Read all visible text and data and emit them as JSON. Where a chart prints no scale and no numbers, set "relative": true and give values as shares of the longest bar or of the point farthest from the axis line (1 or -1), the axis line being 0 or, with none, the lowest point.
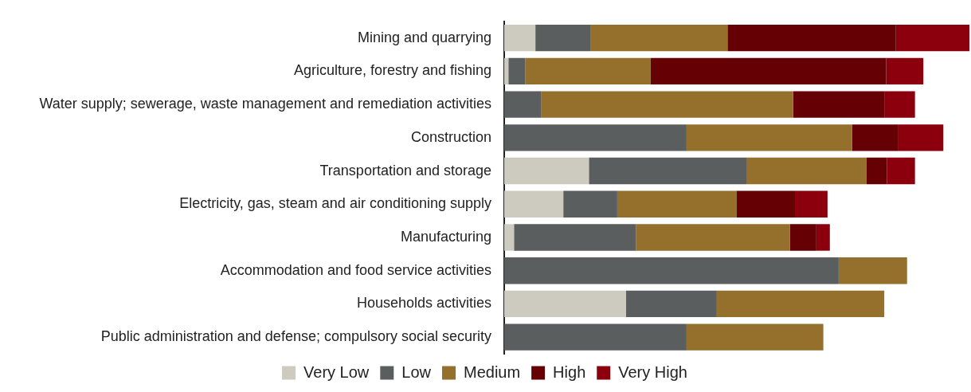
{
  "chart_data": {
    "type": "bar",
    "orientation": "horizontal",
    "stacked": true,
    "relative": true,
    "legend": "bottom",
    "grid": false,
    "categories": [
      "Mining and quarrying",
      "Agriculture, forestry and fishing",
      "Water supply; sewerage, waste management and remediation activities",
      "Construction",
      "Transportation and storage",
      "Electricity, gas, steam and air conditioning supply",
      "Manufacturing",
      "Accommodation and food service activities",
      "Households activities",
      "Public administration and defense; compulsory social security"
    ],
    "series": [
      {
        "name": "Very Low",
        "color": "#cdcbbf",
        "values": [
          0.067,
          0.009,
          0,
          0,
          0.182,
          0.127,
          0.021,
          0,
          0.262,
          0
        ]
      },
      {
        "name": "Low",
        "color": "#5b5e5e",
        "values": [
          0.118,
          0.036,
          0.08,
          0.392,
          0.34,
          0.116,
          0.262,
          0.719,
          0.195,
          0.392
        ]
      },
      {
        "name": "Medium",
        "color": "#94702c",
        "values": [
          0.295,
          0.27,
          0.541,
          0.356,
          0.257,
          0.257,
          0.331,
          0.147,
          0.36,
          0.294
        ]
      },
      {
        "name": "High",
        "color": "#650005",
        "values": [
          0.362,
          0.506,
          0.196,
          0.098,
          0.044,
          0.125,
          0.057,
          0,
          0,
          0
        ]
      },
      {
        "name": "Very High",
        "color": "#8c000e",
        "values": [
          0.158,
          0.08,
          0.066,
          0.098,
          0.06,
          0.07,
          0.029,
          0,
          0,
          0
        ]
      }
    ]
  }
}
